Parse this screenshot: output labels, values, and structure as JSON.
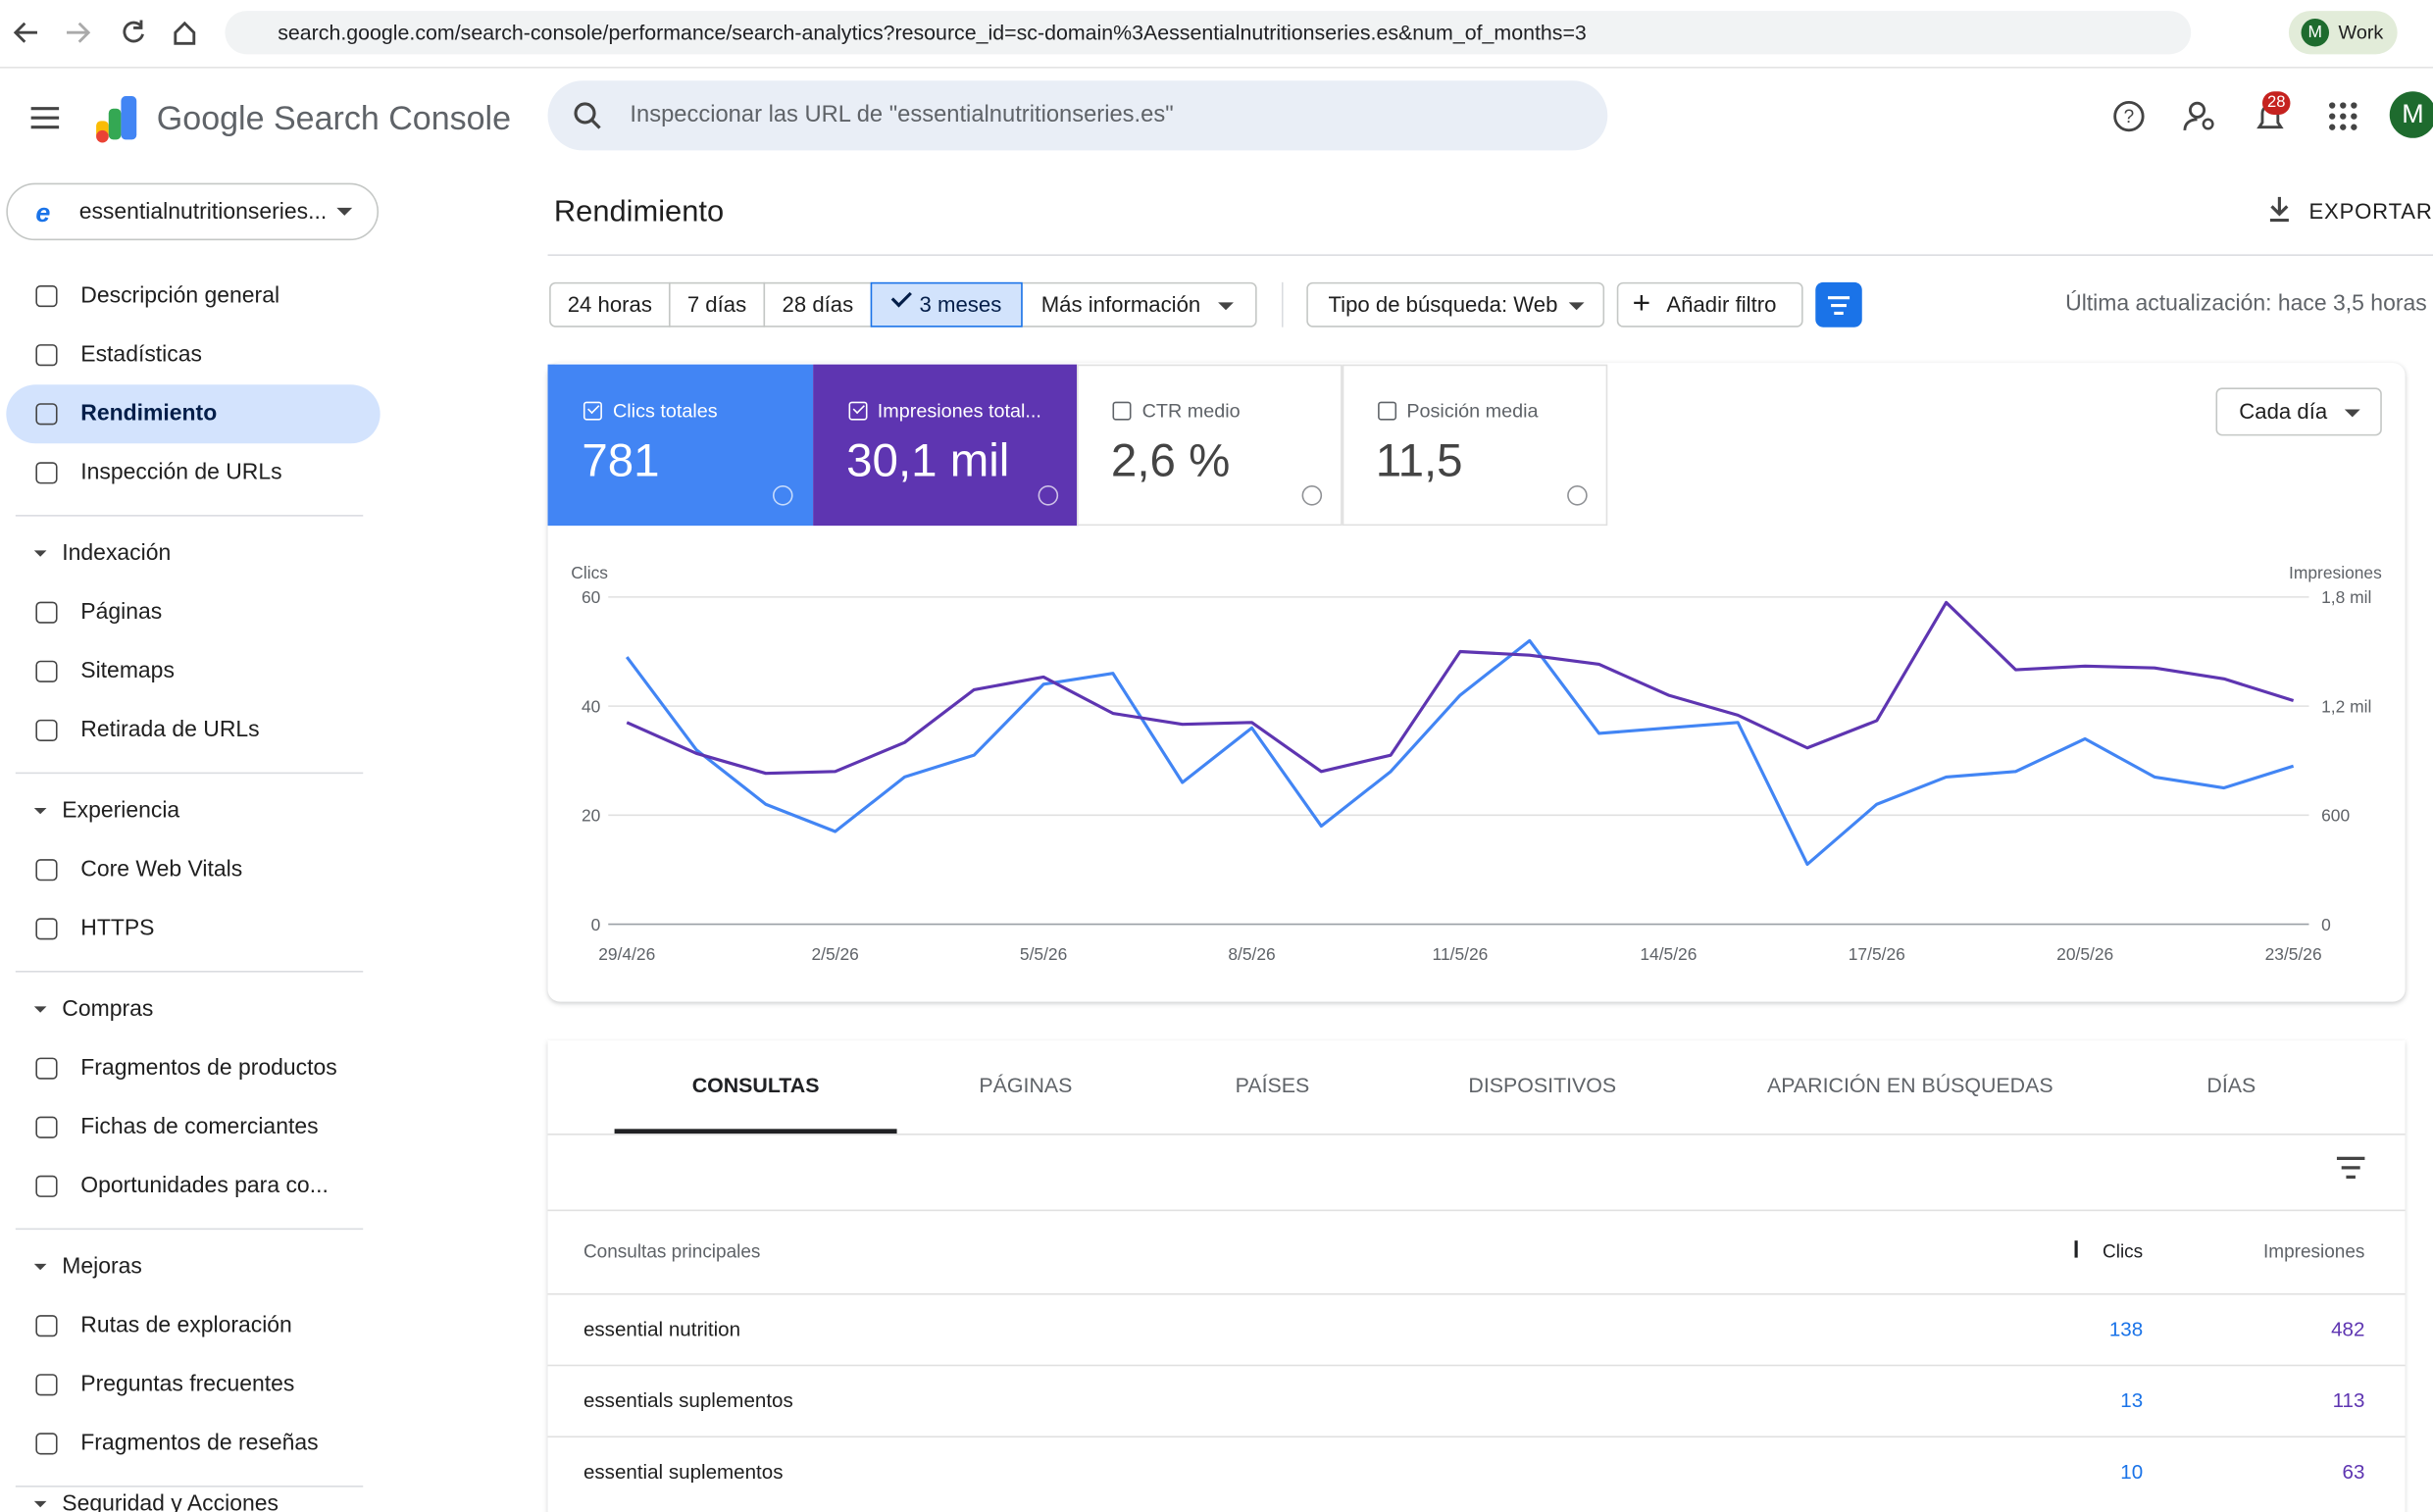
{
  "browser": {
    "url": "search.google.com/search-console/performance/search-analytics?resource_id=sc-domain%3Aessentialnutritionseries.es&num_of_months=3",
    "profile": "Work",
    "avatar": "M"
  },
  "header": {
    "product": "Google Search Console",
    "search_placeholder": "Inspeccionar las URL de \"essentialnutritionseries.es\"",
    "notifications": "28",
    "avatar": "M"
  },
  "sidebar": {
    "property": "essentialnutritionseries...",
    "nav": [
      "Descripción general",
      "Estadísticas",
      "Rendimiento",
      "Inspección de URLs"
    ],
    "groups": [
      {
        "title": "Indexación",
        "items": [
          "Páginas",
          "Sitemaps",
          "Retirada de URLs"
        ]
      },
      {
        "title": "Experiencia",
        "items": [
          "Core Web Vitals",
          "HTTPS"
        ]
      },
      {
        "title": "Compras",
        "items": [
          "Fragmentos de productos",
          "Fichas de comerciantes",
          "Oportunidades para co..."
        ]
      },
      {
        "title": "Mejoras",
        "items": [
          "Rutas de exploración",
          "Preguntas frecuentes",
          "Fragmentos de reseñas"
        ]
      },
      {
        "title": "Seguridad y Acciones"
      }
    ]
  },
  "main": {
    "title": "Rendimiento",
    "export": "EXPORTAR",
    "date_filters": [
      "24 horas",
      "7 días",
      "28 días",
      "3 meses"
    ],
    "more": "Más información",
    "search_type": "Tipo de búsqueda: Web",
    "add_filter": "Añadir filtro",
    "last_update": "Última actualización: hace 3,5 horas",
    "metrics": [
      {
        "label": "Clics totales",
        "value": "781"
      },
      {
        "label": "Impresiones total...",
        "value": "30,1 mil"
      },
      {
        "label": "CTR medio",
        "value": "2,6 %"
      },
      {
        "label": "Posición media",
        "value": "11,5"
      }
    ],
    "granularity": "Cada día",
    "chart": {
      "type": "line",
      "y_label": "Clics",
      "y2_label": "Impresiones",
      "categories": [
        "29/4/26",
        null,
        null,
        "2/5/26",
        null,
        null,
        "5/5/26",
        null,
        null,
        "8/5/26",
        null,
        null,
        "11/5/26",
        null,
        null,
        "14/5/26",
        null,
        null,
        "17/5/26",
        null,
        null,
        "20/5/26",
        null,
        null,
        "23/5/26"
      ],
      "series": [
        {
          "name": "Clics",
          "color": "#4285f4",
          "values": [
            49,
            32,
            22,
            17,
            27,
            31,
            44,
            46,
            26,
            36,
            18,
            28,
            42,
            52,
            35,
            36,
            37,
            11,
            22,
            27,
            28,
            34,
            27,
            25,
            29
          ]
        },
        {
          "name": "Impresiones",
          "color": "#5e35b1",
          "axis": "y2",
          "values": [
            1110,
            940,
            830,
            840,
            1000,
            1290,
            1360,
            1160,
            1100,
            1110,
            840,
            930,
            1500,
            1480,
            1430,
            1260,
            1150,
            970,
            1120,
            1770,
            1400,
            1420,
            1410,
            1350,
            1230
          ]
        }
      ],
      "ylim": [
        0,
        60
      ],
      "yticks": [
        0,
        20,
        40,
        60
      ],
      "y2lim": [
        0,
        1800
      ],
      "y2ticks": [
        0,
        600,
        {
          "value": 1200,
          "label": "1,2 mil"
        },
        {
          "value": 1800,
          "label": "1,8 mil"
        }
      ],
      "grid": true
    },
    "tabs": [
      "CONSULTAS",
      "PÁGINAS",
      "PAÍSES",
      "DISPOSITIVOS",
      "APARICIÓN EN BÚSQUEDAS",
      "DÍAS"
    ],
    "table": {
      "header": [
        "Consultas principales",
        "Clics",
        "Impresiones"
      ],
      "rows": [
        [
          "essential nutrition",
          "138",
          "482"
        ],
        [
          "essentials suplementos",
          "13",
          "113"
        ],
        [
          "essential suplementos",
          "10",
          "63"
        ]
      ]
    }
  }
}
